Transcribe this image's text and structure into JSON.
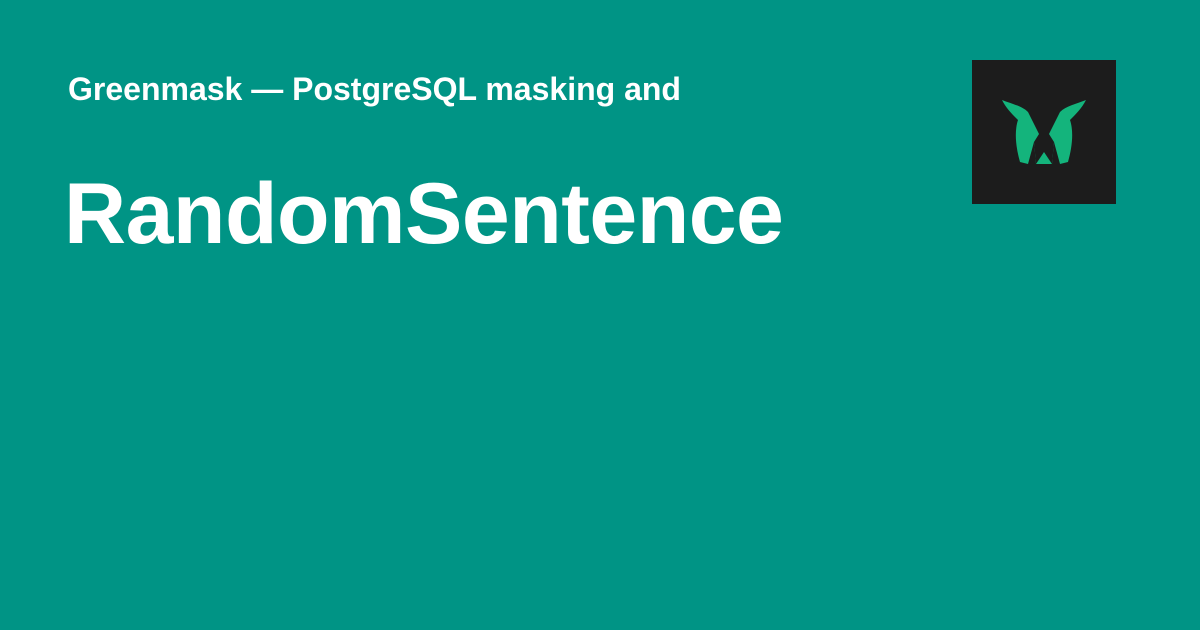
{
  "header": {
    "site_name": "Greenmask — PostgreSQL masking and"
  },
  "main": {
    "title": "RandomSentence"
  },
  "logo": {
    "icon": "greenmask-logo-icon",
    "background_color": "#1c1c1c",
    "mark_color": "#14b47c"
  },
  "theme": {
    "background_color": "#009485",
    "text_color": "#ffffff"
  }
}
